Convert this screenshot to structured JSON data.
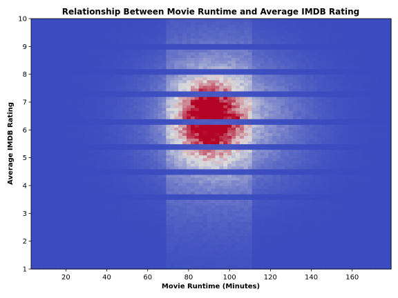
{
  "chart_data": {
    "type": "heatmap",
    "title": "Relationship Between Movie Runtime and Average IMDB Rating",
    "xlabel": "Movie Runtime (Minutes)",
    "ylabel": "Average IMDB Rating",
    "xlim": [
      3,
      179
    ],
    "ylim": [
      1,
      10
    ],
    "xticks": [
      20,
      40,
      60,
      80,
      100,
      120,
      140,
      160
    ],
    "yticks": [
      1,
      2,
      3,
      4,
      5,
      6,
      7,
      8,
      9,
      10
    ],
    "colormap": "coolwarm",
    "colors": {
      "low": "#3b4cc0",
      "mid": "#dddcdc",
      "high": "#b40426"
    },
    "grid": false,
    "bins": {
      "x_bin_minutes": 2,
      "y_bin_rating": 0.1
    },
    "density_peak": {
      "runtime_minutes": 90,
      "rating": 6.4
    },
    "hotspots": [
      {
        "runtime_minutes": 88,
        "rating": 6.3,
        "intensity": 1.0
      },
      {
        "runtime_minutes": 88,
        "rating": 6.7,
        "intensity": 0.98
      },
      {
        "runtime_minutes": 96,
        "rating": 6.2,
        "intensity": 0.97
      },
      {
        "runtime_minutes": 92,
        "rating": 6.9,
        "intensity": 0.9
      },
      {
        "runtime_minutes": 86,
        "rating": 7.3,
        "intensity": 0.8
      },
      {
        "runtime_minutes": 104,
        "rating": 6.4,
        "intensity": 0.72
      },
      {
        "runtime_minutes": 90,
        "rating": 5.6,
        "intensity": 0.78
      }
    ],
    "rating_gaps": [
      8.1,
      7.3,
      6.3,
      5.4,
      4.5,
      3.6,
      9.0
    ]
  }
}
